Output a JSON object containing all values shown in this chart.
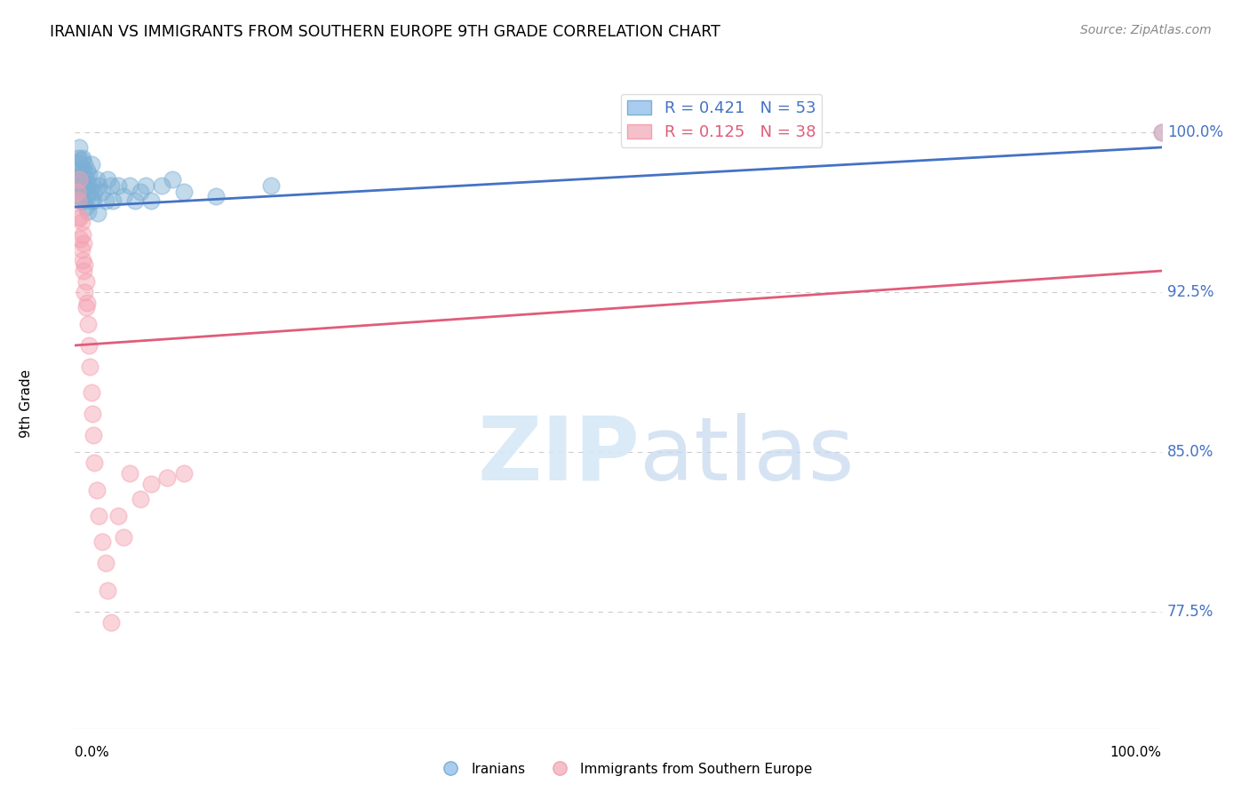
{
  "title": "IRANIAN VS IMMIGRANTS FROM SOUTHERN EUROPE 9TH GRADE CORRELATION CHART",
  "source": "Source: ZipAtlas.com",
  "ylabel": "9th Grade",
  "ytick_labels": [
    "100.0%",
    "92.5%",
    "85.0%",
    "77.5%"
  ],
  "ytick_values": [
    1.0,
    0.925,
    0.85,
    0.775
  ],
  "xlim": [
    0.0,
    1.0
  ],
  "ylim": [
    0.72,
    1.025
  ],
  "legend_blue_r": "R = 0.421",
  "legend_blue_n": "N = 53",
  "legend_pink_r": "R = 0.125",
  "legend_pink_n": "N = 38",
  "blue_color": "#7BAFD4",
  "pink_color": "#F4A0B0",
  "blue_line_color": "#4472C4",
  "pink_line_color": "#E05C7A",
  "blue_scatter_x": [
    0.002,
    0.003,
    0.003,
    0.004,
    0.004,
    0.005,
    0.005,
    0.005,
    0.006,
    0.006,
    0.006,
    0.007,
    0.007,
    0.007,
    0.008,
    0.008,
    0.008,
    0.009,
    0.009,
    0.01,
    0.01,
    0.011,
    0.011,
    0.012,
    0.012,
    0.013,
    0.014,
    0.015,
    0.015,
    0.016,
    0.017,
    0.018,
    0.02,
    0.021,
    0.022,
    0.025,
    0.028,
    0.03,
    0.033,
    0.035,
    0.04,
    0.045,
    0.05,
    0.055,
    0.06,
    0.065,
    0.07,
    0.08,
    0.09,
    0.1,
    0.13,
    0.18,
    1.0
  ],
  "blue_scatter_y": [
    0.98,
    0.988,
    0.975,
    0.993,
    0.985,
    0.978,
    0.983,
    0.97,
    0.987,
    0.975,
    0.968,
    0.98,
    0.972,
    0.988,
    0.982,
    0.976,
    0.968,
    0.975,
    0.985,
    0.978,
    0.965,
    0.982,
    0.97,
    0.975,
    0.963,
    0.98,
    0.972,
    0.985,
    0.968,
    0.975,
    0.968,
    0.972,
    0.978,
    0.962,
    0.975,
    0.972,
    0.968,
    0.978,
    0.975,
    0.968,
    0.975,
    0.97,
    0.975,
    0.968,
    0.972,
    0.975,
    0.968,
    0.975,
    0.978,
    0.972,
    0.97,
    0.975,
    1.0
  ],
  "pink_scatter_x": [
    0.002,
    0.003,
    0.003,
    0.004,
    0.005,
    0.005,
    0.006,
    0.006,
    0.007,
    0.007,
    0.008,
    0.008,
    0.009,
    0.009,
    0.01,
    0.01,
    0.011,
    0.012,
    0.013,
    0.014,
    0.015,
    0.016,
    0.017,
    0.018,
    0.02,
    0.022,
    0.025,
    0.028,
    0.03,
    0.033,
    0.04,
    0.045,
    0.05,
    0.06,
    0.07,
    0.085,
    0.1,
    1.0
  ],
  "pink_scatter_y": [
    0.972,
    0.968,
    0.96,
    0.978,
    0.96,
    0.95,
    0.958,
    0.945,
    0.952,
    0.94,
    0.948,
    0.935,
    0.938,
    0.925,
    0.93,
    0.918,
    0.92,
    0.91,
    0.9,
    0.89,
    0.878,
    0.868,
    0.858,
    0.845,
    0.832,
    0.82,
    0.808,
    0.798,
    0.785,
    0.77,
    0.82,
    0.81,
    0.84,
    0.828,
    0.835,
    0.838,
    0.84,
    1.0
  ],
  "blue_line_x": [
    0.0,
    1.0
  ],
  "blue_line_y": [
    0.965,
    0.993
  ],
  "pink_line_x": [
    0.0,
    1.0
  ],
  "pink_line_y": [
    0.9,
    0.935
  ],
  "grid_color": "#CCCCCC",
  "background_color": "#FFFFFF"
}
